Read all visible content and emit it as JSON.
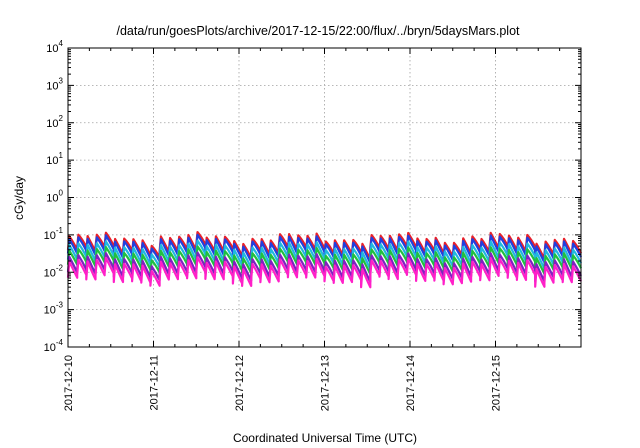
{
  "chart_data": {
    "type": "line",
    "title": "/data/run/goesPlots/archive/2017-12-15/22:00/flux/../bryn/5daysMars.plot",
    "xlabel": "Coordinated Universal Time (UTC)",
    "ylabel": "cGy/day",
    "yscale": "log",
    "ylim": [
      0.0001,
      10000
    ],
    "xlim": [
      "2017-12-10",
      "2017-12-16"
    ],
    "grid": true,
    "y_ticks": [
      {
        "value": 0.0001,
        "base": "10",
        "exp": "-4"
      },
      {
        "value": 0.001,
        "base": "10",
        "exp": "-3"
      },
      {
        "value": 0.01,
        "base": "10",
        "exp": "-2"
      },
      {
        "value": 0.1,
        "base": "10",
        "exp": "-1"
      },
      {
        "value": 1,
        "base": "10",
        "exp": "0"
      },
      {
        "value": 10,
        "base": "10",
        "exp": "1"
      },
      {
        "value": 100,
        "base": "10",
        "exp": "2"
      },
      {
        "value": 1000,
        "base": "10",
        "exp": "3"
      },
      {
        "value": 10000,
        "base": "10",
        "exp": "4"
      }
    ],
    "x_ticks": [
      {
        "value": "2017-12-10",
        "label": "2017-12-10"
      },
      {
        "value": "2017-12-11",
        "label": "2017-12-11"
      },
      {
        "value": "2017-12-12",
        "label": "2017-12-12"
      },
      {
        "value": "2017-12-13",
        "label": "2017-12-13"
      },
      {
        "value": "2017-12-14",
        "label": "2017-12-14"
      },
      {
        "value": "2017-12-15",
        "label": "2017-12-15"
      }
    ],
    "series": [
      {
        "color": "#e8202a",
        "peak": 0.085,
        "trough": 0.04
      },
      {
        "color": "#2040e0",
        "peak": 0.072,
        "trough": 0.032
      },
      {
        "color": "#20b8e0",
        "peak": 0.05,
        "trough": 0.022
      },
      {
        "color": "#20c040",
        "peak": 0.035,
        "trough": 0.016
      },
      {
        "color": "#8020c0",
        "peak": 0.024,
        "trough": 0.01
      },
      {
        "color": "#ff20c8",
        "peak": 0.018,
        "trough": 0.0072
      }
    ],
    "cycles_per_day": 9.4
  }
}
